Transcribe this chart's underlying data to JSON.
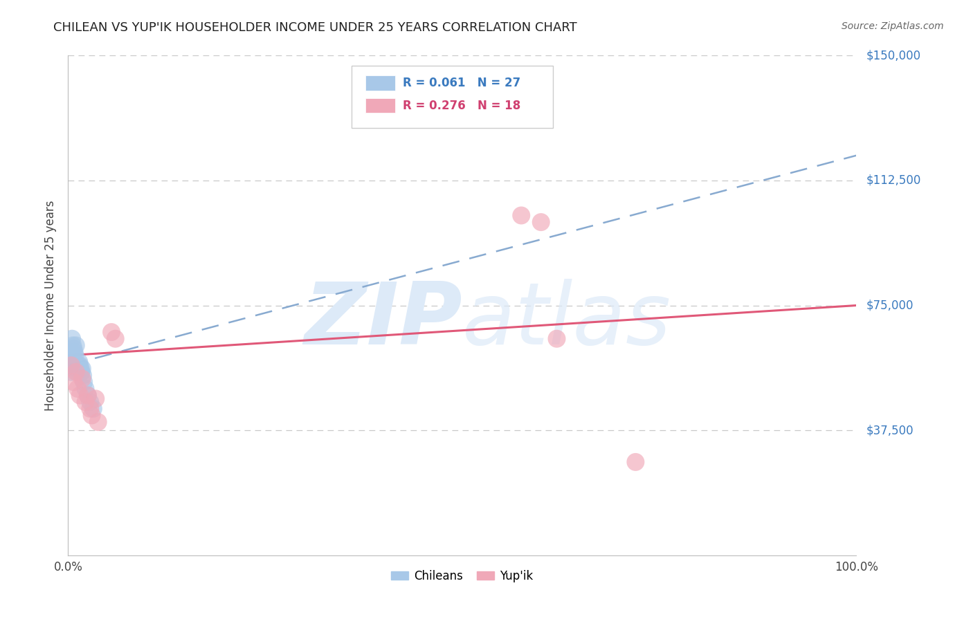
{
  "title": "CHILEAN VS YUP'IK HOUSEHOLDER INCOME UNDER 25 YEARS CORRELATION CHART",
  "source": "Source: ZipAtlas.com",
  "ylabel": "Householder Income Under 25 years",
  "xlim": [
    0,
    1.0
  ],
  "ylim": [
    0,
    150000
  ],
  "ytick_vals": [
    37500,
    75000,
    112500,
    150000
  ],
  "ytick_labels": [
    "$37,500",
    "$75,000",
    "$112,500",
    "$150,000"
  ],
  "background_color": "#ffffff",
  "grid_color": "#c8c8c8",
  "chilean_color": "#a8c8e8",
  "yupik_color": "#f0a8b8",
  "chilean_line_color": "#88aad0",
  "yupik_line_color": "#e05878",
  "watermark_color": "#ddeaf8",
  "chilean_r_text": "R = 0.061",
  "chilean_n_text": "N = 27",
  "yupik_r_text": "R = 0.276",
  "yupik_n_text": "N = 18",
  "chilean_text_color": "#3a7abf",
  "yupik_text_color": "#d04070",
  "chilean_x": [
    0.002,
    0.003,
    0.003,
    0.004,
    0.005,
    0.005,
    0.006,
    0.007,
    0.008,
    0.008,
    0.009,
    0.01,
    0.01,
    0.011,
    0.012,
    0.013,
    0.014,
    0.015,
    0.016,
    0.017,
    0.018,
    0.019,
    0.02,
    0.022,
    0.025,
    0.028,
    0.032
  ],
  "chilean_y": [
    58000,
    60000,
    57000,
    55000,
    65000,
    60000,
    63000,
    62000,
    61000,
    58000,
    60000,
    63000,
    57000,
    56000,
    55000,
    57000,
    58000,
    57000,
    56000,
    55000,
    56000,
    54000,
    52000,
    50000,
    48000,
    46000,
    44000
  ],
  "yupik_x": [
    0.004,
    0.007,
    0.01,
    0.012,
    0.015,
    0.018,
    0.022,
    0.025,
    0.028,
    0.03,
    0.035,
    0.038,
    0.055,
    0.06,
    0.575,
    0.6,
    0.62,
    0.72
  ],
  "yupik_y": [
    57000,
    52000,
    55000,
    50000,
    48000,
    53000,
    46000,
    48000,
    44000,
    42000,
    47000,
    40000,
    67000,
    65000,
    102000,
    100000,
    65000,
    28000
  ],
  "chilean_line_x0": 0.0,
  "chilean_line_y0": 57000,
  "chilean_line_x1": 1.0,
  "chilean_line_y1": 120000,
  "yupik_line_x0": 0.0,
  "yupik_line_y0": 60000,
  "yupik_line_x1": 1.0,
  "yupik_line_y1": 75000
}
